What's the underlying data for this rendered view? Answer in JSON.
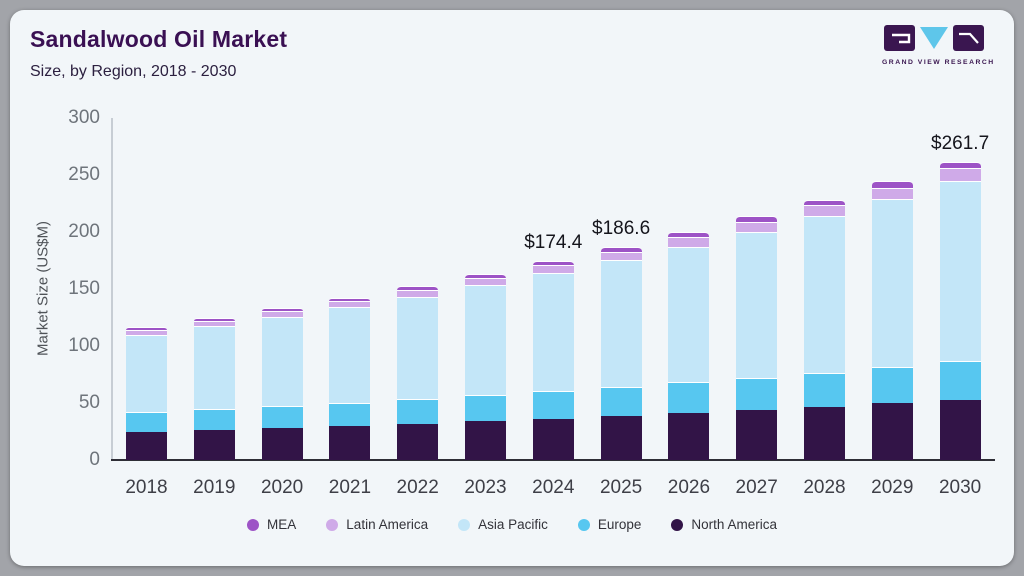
{
  "header": {
    "title": "Sandalwood Oil Market",
    "subtitle": "Size, by Region, 2018 - 2030",
    "logo": {
      "brand": "GRAND VIEW RESEARCH"
    }
  },
  "colors": {
    "card_bg": "#f2f6f9",
    "outer_bg": "#a2a4a9",
    "title": "#3a1053",
    "logo_purple": "#3a1650",
    "logo_blue": "#5ec6ea"
  },
  "chart_data": {
    "type": "bar",
    "stacked": true,
    "title": "Sandalwood Oil Market",
    "subtitle": "Size, by Region, 2018 - 2030",
    "xlabel": "",
    "ylabel": "Market Size (US$M)",
    "ylim": [
      0,
      300
    ],
    "yticks": [
      0,
      50,
      100,
      150,
      200,
      250,
      300
    ],
    "grid": false,
    "legend_position": "bottom",
    "categories": [
      "2018",
      "2019",
      "2020",
      "2021",
      "2022",
      "2023",
      "2024",
      "2025",
      "2026",
      "2027",
      "2028",
      "2029",
      "2030"
    ],
    "series": [
      {
        "name": "North America",
        "color": "#321447",
        "values": [
          24.8,
          26.4,
          28.1,
          30.0,
          31.9,
          34.0,
          36.2,
          38.6,
          41.1,
          43.8,
          46.6,
          49.7,
          52.9
        ]
      },
      {
        "name": "Europe",
        "color": "#57c7f0",
        "values": [
          17.0,
          18.0,
          19.1,
          20.2,
          21.4,
          22.6,
          24.0,
          25.4,
          26.9,
          28.5,
          30.1,
          31.9,
          33.8
        ]
      },
      {
        "name": "Asia Pacific",
        "color": "#c3e6f8",
        "values": [
          67.8,
          72.9,
          78.1,
          83.8,
          90.0,
          96.6,
          103.6,
          111.1,
          119.2,
          127.9,
          137.3,
          147.3,
          158.1
        ]
      },
      {
        "name": "Latin America",
        "color": "#cfaae8",
        "values": [
          4.4,
          4.7,
          5.1,
          5.5,
          5.9,
          6.4,
          6.9,
          7.5,
          8.1,
          8.7,
          9.4,
          10.1,
          11.0
        ]
      },
      {
        "name": "MEA",
        "color": "#9d53c6",
        "values": [
          2.3,
          2.5,
          2.7,
          2.9,
          3.2,
          3.4,
          3.7,
          4.0,
          4.3,
          4.7,
          5.1,
          5.5,
          5.9
        ]
      }
    ],
    "totals": [
      116.3,
      124.5,
      133.1,
      142.4,
      152.4,
      163.0,
      174.4,
      186.6,
      199.6,
      213.6,
      228.5,
      244.5,
      261.7
    ],
    "annotations": [
      {
        "category": "2024",
        "label": "$174.4"
      },
      {
        "category": "2025",
        "label": "$186.6"
      },
      {
        "category": "2030",
        "label": "$261.7"
      }
    ],
    "legend_order": [
      "MEA",
      "Latin America",
      "Asia Pacific",
      "Europe",
      "North America"
    ]
  }
}
